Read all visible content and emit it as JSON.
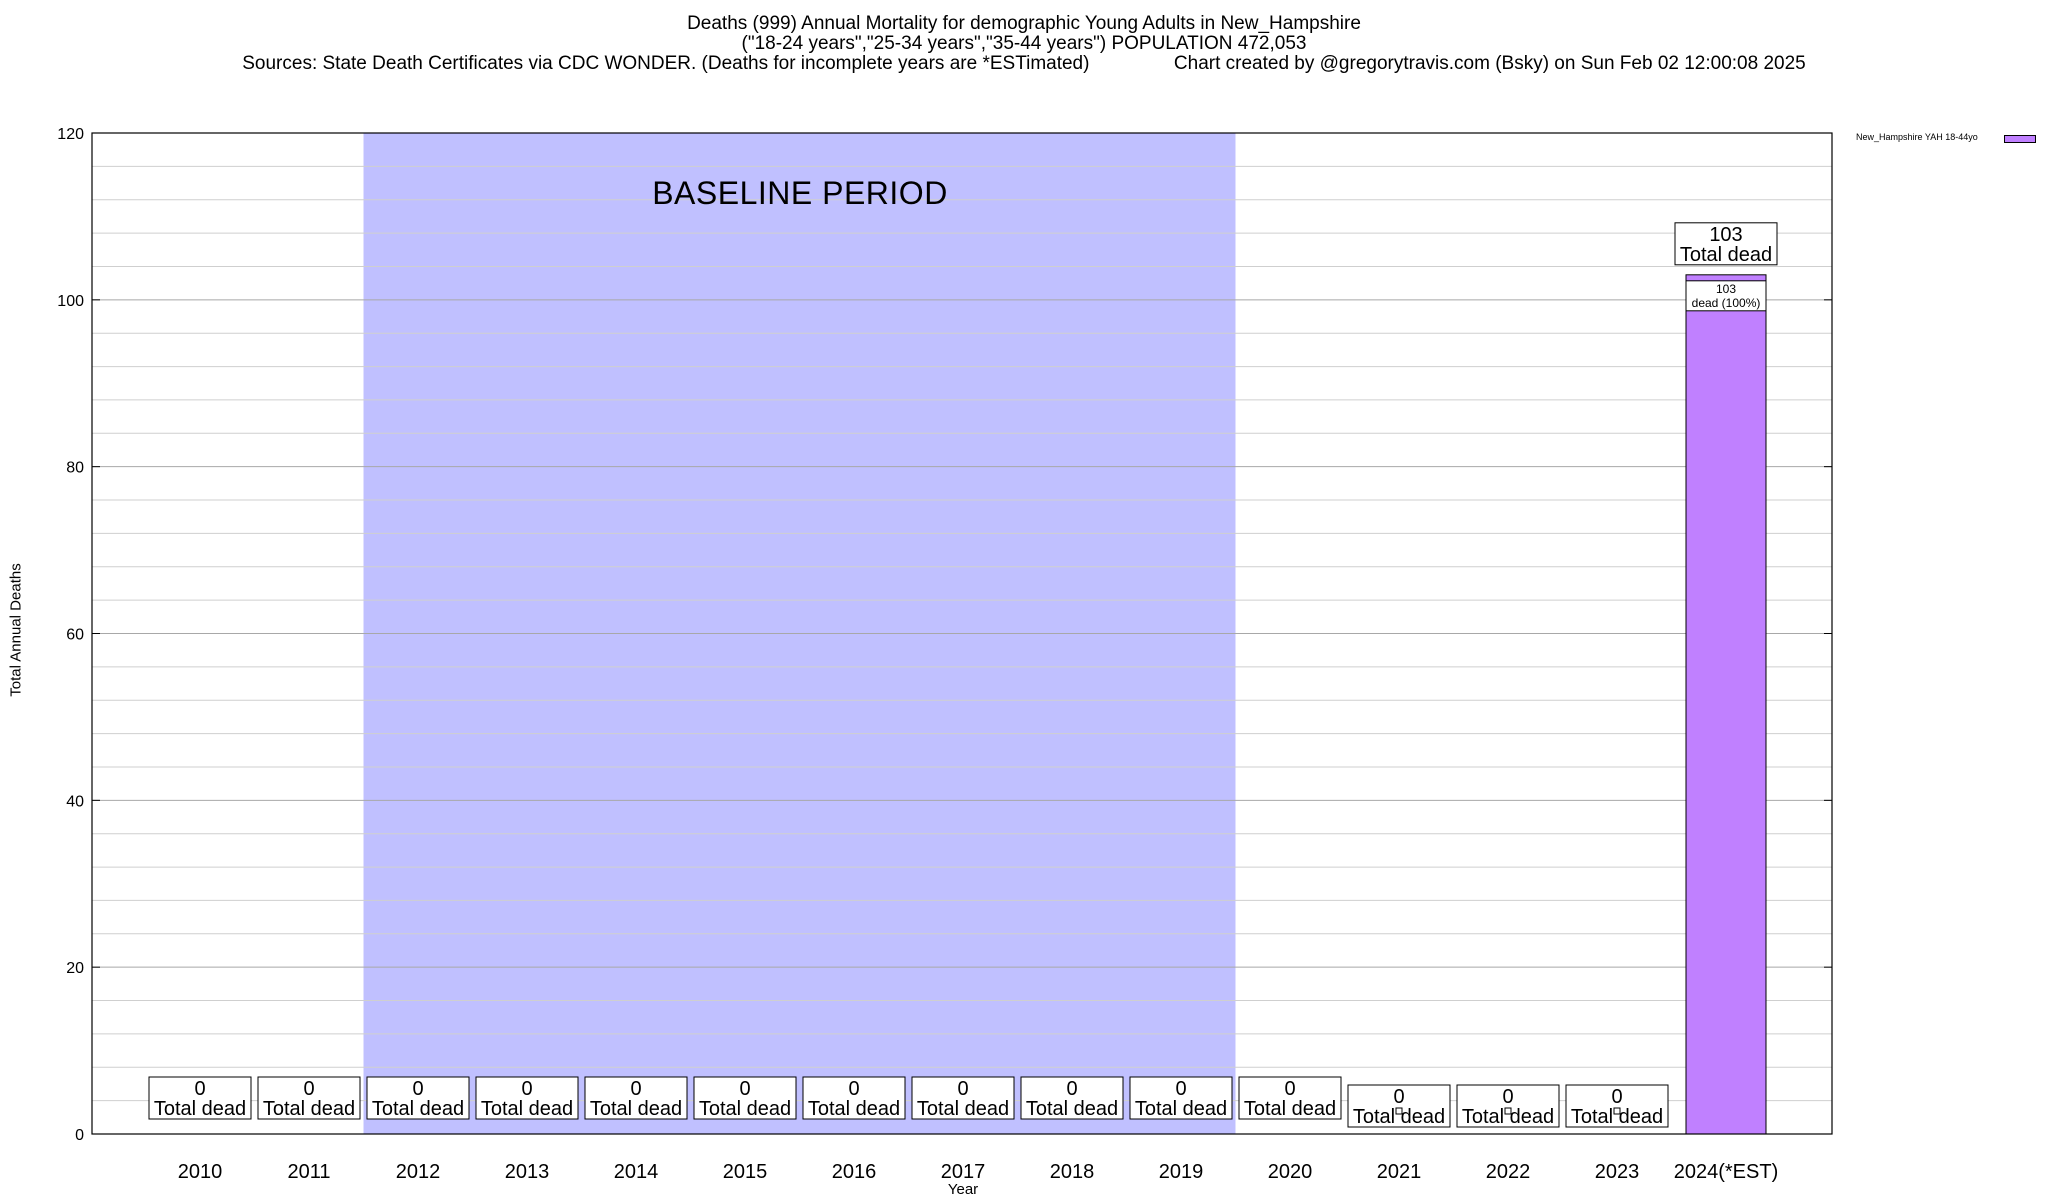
{
  "chart_data": {
    "type": "bar",
    "title": "Deaths (999) Annual Mortality for demographic Young Adults in New_Hampshire",
    "subtitle": "(\"18-24 years\",\"25-34 years\",\"35-44 years\") POPULATION 472,053",
    "source_line": "Sources: State Death Certificates via CDC WONDER. (Deaths for incomplete years are *ESTimated)                Chart created by @gregorytravis.com (Bsky) on Sun Feb 02 12:00:08 2025",
    "xlabel": "Year",
    "ylabel": "Total Annual Deaths",
    "ylim": [
      0,
      120
    ],
    "yticks": [
      0,
      20,
      40,
      60,
      80,
      100,
      120
    ],
    "grid": true,
    "categories": [
      "2010",
      "2011",
      "2012",
      "2013",
      "2014",
      "2015",
      "2016",
      "2017",
      "2018",
      "2019",
      "2020",
      "2021",
      "2022",
      "2023",
      "2024(*EST)"
    ],
    "series": [
      {
        "name": "New_Hampshire YAH 18-44yo",
        "color": "#c080ff",
        "values": [
          0,
          0,
          0,
          0,
          0,
          0,
          0,
          0,
          0,
          0,
          0,
          0,
          0,
          0,
          103
        ]
      }
    ],
    "total_labels": [
      "0\nTotal dead",
      "0\nTotal dead",
      "0\nTotal dead",
      "0\nTotal dead",
      "0\nTotal dead",
      "0\nTotal dead",
      "0\nTotal dead",
      "0\nTotal dead",
      "0\nTotal dead",
      "0\nTotal dead",
      "0\nTotal dead",
      "0\nTotal dead",
      "0\nTotal dead",
      "0\nTotal dead",
      "103\nTotal dead"
    ],
    "inner_label": "103\ndead (100%)",
    "baseline": {
      "label": "BASELINE PERIOD",
      "from": "2012",
      "to": "2019",
      "color": "#c0c0ff"
    },
    "legend_position": "top-right"
  }
}
